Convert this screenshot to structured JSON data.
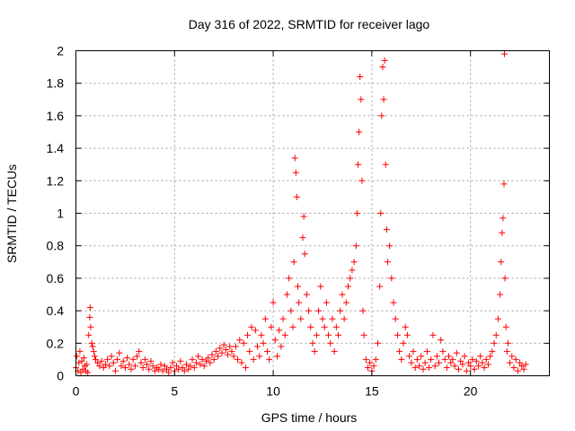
{
  "chart_data": {
    "type": "scatter",
    "title": "Day 316 of 2022, SRMTID for receiver lago",
    "xlabel": "GPS time / hours",
    "ylabel": "SRMTID / TECUs",
    "xlim": [
      0,
      24
    ],
    "ylim": [
      0,
      2
    ],
    "xticks": [
      0,
      5,
      10,
      15,
      20
    ],
    "yticks": [
      0,
      0.2,
      0.4,
      0.6,
      0.8,
      1,
      1.2,
      1.4,
      1.6,
      1.8,
      2
    ],
    "ytick_labels": [
      "0",
      "0.2",
      "0.4",
      "0.6",
      "0.8",
      "1",
      "1.2",
      "1.4",
      "1.6",
      "1.8",
      "2"
    ],
    "grid": true,
    "marker": "+",
    "color": "#ff0000",
    "series": [
      {
        "name": "SRMTID",
        "points": [
          [
            0.0,
            0.05
          ],
          [
            0.05,
            0.12
          ],
          [
            0.1,
            0.03
          ],
          [
            0.15,
            0.08
          ],
          [
            0.2,
            0.15
          ],
          [
            0.25,
            0.02
          ],
          [
            0.3,
            0.09
          ],
          [
            0.35,
            0.04
          ],
          [
            0.4,
            0.11
          ],
          [
            0.45,
            0.06
          ],
          [
            0.5,
            0.03
          ],
          [
            0.55,
            0.07
          ],
          [
            0.6,
            0.02
          ],
          [
            0.65,
            0.25
          ],
          [
            0.7,
            0.36
          ],
          [
            0.72,
            0.42
          ],
          [
            0.75,
            0.3
          ],
          [
            0.8,
            0.2
          ],
          [
            0.85,
            0.18
          ],
          [
            0.9,
            0.15
          ],
          [
            0.95,
            0.12
          ],
          [
            1.0,
            0.1
          ],
          [
            1.1,
            0.08
          ],
          [
            1.2,
            0.06
          ],
          [
            1.3,
            0.09
          ],
          [
            1.4,
            0.05
          ],
          [
            1.5,
            0.07
          ],
          [
            1.6,
            0.1
          ],
          [
            1.7,
            0.06
          ],
          [
            1.8,
            0.12
          ],
          [
            1.9,
            0.08
          ],
          [
            2.0,
            0.03
          ],
          [
            2.1,
            0.1
          ],
          [
            2.2,
            0.14
          ],
          [
            2.3,
            0.06
          ],
          [
            2.4,
            0.09
          ],
          [
            2.5,
            0.05
          ],
          [
            2.6,
            0.11
          ],
          [
            2.7,
            0.07
          ],
          [
            2.8,
            0.04
          ],
          [
            2.9,
            0.1
          ],
          [
            3.0,
            0.06
          ],
          [
            3.1,
            0.12
          ],
          [
            3.2,
            0.15
          ],
          [
            3.3,
            0.08
          ],
          [
            3.4,
            0.05
          ],
          [
            3.5,
            0.1
          ],
          [
            3.6,
            0.07
          ],
          [
            3.7,
            0.04
          ],
          [
            3.8,
            0.09
          ],
          [
            3.9,
            0.06
          ],
          [
            4.0,
            0.03
          ],
          [
            4.1,
            0.05
          ],
          [
            4.2,
            0.04
          ],
          [
            4.3,
            0.07
          ],
          [
            4.4,
            0.03
          ],
          [
            4.5,
            0.06
          ],
          [
            4.6,
            0.04
          ],
          [
            4.7,
            0.02
          ],
          [
            4.8,
            0.05
          ],
          [
            4.9,
            0.08
          ],
          [
            5.0,
            0.03
          ],
          [
            5.1,
            0.06
          ],
          [
            5.2,
            0.04
          ],
          [
            5.3,
            0.09
          ],
          [
            5.4,
            0.05
          ],
          [
            5.5,
            0.03
          ],
          [
            5.6,
            0.07
          ],
          [
            5.7,
            0.04
          ],
          [
            5.8,
            0.06
          ],
          [
            5.9,
            0.1
          ],
          [
            6.0,
            0.05
          ],
          [
            6.1,
            0.08
          ],
          [
            6.2,
            0.12
          ],
          [
            6.3,
            0.07
          ],
          [
            6.4,
            0.1
          ],
          [
            6.5,
            0.06
          ],
          [
            6.6,
            0.09
          ],
          [
            6.7,
            0.11
          ],
          [
            6.8,
            0.08
          ],
          [
            6.9,
            0.13
          ],
          [
            7.0,
            0.1
          ],
          [
            7.1,
            0.15
          ],
          [
            7.2,
            0.12
          ],
          [
            7.3,
            0.17
          ],
          [
            7.4,
            0.14
          ],
          [
            7.5,
            0.19
          ],
          [
            7.6,
            0.16
          ],
          [
            7.7,
            0.13
          ],
          [
            7.8,
            0.18
          ],
          [
            7.9,
            0.15
          ],
          [
            8.0,
            0.12
          ],
          [
            8.1,
            0.18
          ],
          [
            8.2,
            0.1
          ],
          [
            8.3,
            0.22
          ],
          [
            8.4,
            0.08
          ],
          [
            8.5,
            0.2
          ],
          [
            8.6,
            0.05
          ],
          [
            8.7,
            0.25
          ],
          [
            8.8,
            0.15
          ],
          [
            8.9,
            0.3
          ],
          [
            9.0,
            0.1
          ],
          [
            9.1,
            0.28
          ],
          [
            9.2,
            0.18
          ],
          [
            9.3,
            0.12
          ],
          [
            9.4,
            0.25
          ],
          [
            9.5,
            0.2
          ],
          [
            9.6,
            0.35
          ],
          [
            9.7,
            0.15
          ],
          [
            9.8,
            0.1
          ],
          [
            9.9,
            0.3
          ],
          [
            10.0,
            0.45
          ],
          [
            10.1,
            0.22
          ],
          [
            10.2,
            0.12
          ],
          [
            10.3,
            0.28
          ],
          [
            10.4,
            0.18
          ],
          [
            10.5,
            0.35
          ],
          [
            10.6,
            0.25
          ],
          [
            10.7,
            0.5
          ],
          [
            10.8,
            0.6
          ],
          [
            10.9,
            0.4
          ],
          [
            11.0,
            0.3
          ],
          [
            11.05,
            0.7
          ],
          [
            11.1,
            1.34
          ],
          [
            11.15,
            1.25
          ],
          [
            11.2,
            1.1
          ],
          [
            11.25,
            0.55
          ],
          [
            11.3,
            0.45
          ],
          [
            11.4,
            0.35
          ],
          [
            11.5,
            0.85
          ],
          [
            11.55,
            0.98
          ],
          [
            11.6,
            0.75
          ],
          [
            11.7,
            0.5
          ],
          [
            11.8,
            0.4
          ],
          [
            11.9,
            0.3
          ],
          [
            12.0,
            0.2
          ],
          [
            12.1,
            0.15
          ],
          [
            12.2,
            0.25
          ],
          [
            12.3,
            0.4
          ],
          [
            12.4,
            0.55
          ],
          [
            12.5,
            0.35
          ],
          [
            12.6,
            0.3
          ],
          [
            12.7,
            0.45
          ],
          [
            12.8,
            0.25
          ],
          [
            12.9,
            0.2
          ],
          [
            13.0,
            0.35
          ],
          [
            13.1,
            0.15
          ],
          [
            13.2,
            0.3
          ],
          [
            13.3,
            0.25
          ],
          [
            13.4,
            0.4
          ],
          [
            13.5,
            0.5
          ],
          [
            13.6,
            0.35
          ],
          [
            13.7,
            0.45
          ],
          [
            13.8,
            0.55
          ],
          [
            13.9,
            0.6
          ],
          [
            14.0,
            0.65
          ],
          [
            14.1,
            0.7
          ],
          [
            14.2,
            0.8
          ],
          [
            14.25,
            1.0
          ],
          [
            14.3,
            1.3
          ],
          [
            14.35,
            1.5
          ],
          [
            14.4,
            1.84
          ],
          [
            14.45,
            1.7
          ],
          [
            14.5,
            1.2
          ],
          [
            14.55,
            0.4
          ],
          [
            14.6,
            0.25
          ],
          [
            14.7,
            0.1
          ],
          [
            14.8,
            0.05
          ],
          [
            14.9,
            0.08
          ],
          [
            15.0,
            0.03
          ],
          [
            15.1,
            0.06
          ],
          [
            15.2,
            0.1
          ],
          [
            15.3,
            0.2
          ],
          [
            15.4,
            0.55
          ],
          [
            15.45,
            1.0
          ],
          [
            15.5,
            1.6
          ],
          [
            15.55,
            1.9
          ],
          [
            15.6,
            1.7
          ],
          [
            15.65,
            1.94
          ],
          [
            15.7,
            1.3
          ],
          [
            15.75,
            0.9
          ],
          [
            15.8,
            0.7
          ],
          [
            15.9,
            0.8
          ],
          [
            16.0,
            0.6
          ],
          [
            16.1,
            0.45
          ],
          [
            16.2,
            0.35
          ],
          [
            16.3,
            0.25
          ],
          [
            16.4,
            0.15
          ],
          [
            16.5,
            0.1
          ],
          [
            16.6,
            0.2
          ],
          [
            16.7,
            0.3
          ],
          [
            16.8,
            0.25
          ],
          [
            16.9,
            0.12
          ],
          [
            17.0,
            0.08
          ],
          [
            17.1,
            0.15
          ],
          [
            17.2,
            0.05
          ],
          [
            17.3,
            0.1
          ],
          [
            17.4,
            0.06
          ],
          [
            17.5,
            0.12
          ],
          [
            17.6,
            0.04
          ],
          [
            17.7,
            0.08
          ],
          [
            17.8,
            0.15
          ],
          [
            17.9,
            0.05
          ],
          [
            18.0,
            0.1
          ],
          [
            18.1,
            0.25
          ],
          [
            18.2,
            0.06
          ],
          [
            18.3,
            0.12
          ],
          [
            18.4,
            0.08
          ],
          [
            18.5,
            0.22
          ],
          [
            18.6,
            0.15
          ],
          [
            18.7,
            0.1
          ],
          [
            18.8,
            0.05
          ],
          [
            18.9,
            0.12
          ],
          [
            19.0,
            0.08
          ],
          [
            19.1,
            0.1
          ],
          [
            19.2,
            0.06
          ],
          [
            19.3,
            0.14
          ],
          [
            19.4,
            0.04
          ],
          [
            19.5,
            0.09
          ],
          [
            19.6,
            0.07
          ],
          [
            19.7,
            0.12
          ],
          [
            19.8,
            0.03
          ],
          [
            19.9,
            0.08
          ],
          [
            20.0,
            0.06
          ],
          [
            20.1,
            0.1
          ],
          [
            20.2,
            0.04
          ],
          [
            20.3,
            0.09
          ],
          [
            20.4,
            0.06
          ],
          [
            20.5,
            0.12
          ],
          [
            20.6,
            0.08
          ],
          [
            20.7,
            0.05
          ],
          [
            20.8,
            0.1
          ],
          [
            20.9,
            0.07
          ],
          [
            21.0,
            0.12
          ],
          [
            21.1,
            0.15
          ],
          [
            21.2,
            0.2
          ],
          [
            21.3,
            0.25
          ],
          [
            21.4,
            0.35
          ],
          [
            21.5,
            0.5
          ],
          [
            21.55,
            0.7
          ],
          [
            21.6,
            0.88
          ],
          [
            21.65,
            0.97
          ],
          [
            21.7,
            1.18
          ],
          [
            21.72,
            1.98
          ],
          [
            21.75,
            0.6
          ],
          [
            21.8,
            0.3
          ],
          [
            21.85,
            0.15
          ],
          [
            21.9,
            0.2
          ],
          [
            22.0,
            0.08
          ],
          [
            22.1,
            0.12
          ],
          [
            22.2,
            0.05
          ],
          [
            22.3,
            0.1
          ],
          [
            22.4,
            0.03
          ],
          [
            22.5,
            0.08
          ],
          [
            22.6,
            0.06
          ],
          [
            22.7,
            0.04
          ],
          [
            22.8,
            0.07
          ]
        ]
      }
    ]
  }
}
